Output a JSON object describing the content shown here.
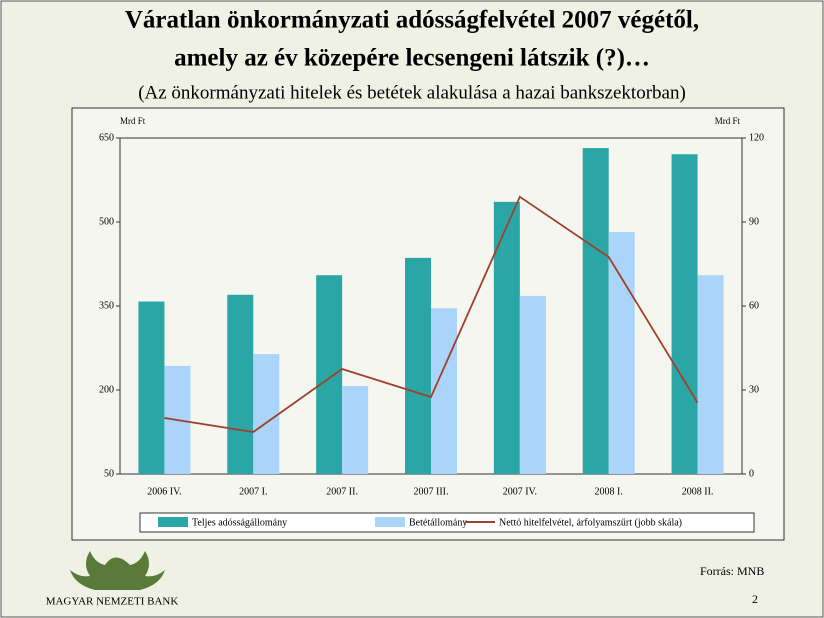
{
  "chart_data": {
    "type": "bar",
    "title": [
      "Váratlan önkormányzati adósságfelvétel 2007 végétől,",
      "amely az év közepére lecsengeni látszik (?)…"
    ],
    "subtitle": "(Az önkormányzati hitelek és betétek alakulása a hazai bankszektorban)",
    "y_label": "Mrd Ft",
    "y2_label": "Mrd Ft",
    "categories": [
      "2006 IV.",
      "2007 I.",
      "2007 II.",
      "2007 III.",
      "2007 IV.",
      "2008 I.",
      "2008 II."
    ],
    "series": [
      {
        "name": "Teljes adósságállomány",
        "color": "#2aa6a6",
        "values": [
          358,
          370,
          405,
          436,
          536,
          632,
          621
        ]
      },
      {
        "name": "Betétállomány",
        "color": "#aad4fa",
        "values": [
          243,
          264,
          207,
          346,
          368,
          482,
          405
        ]
      },
      {
        "name": "Nettó hitelfelvétel, árfolyamszűrt (jobb skála)",
        "color": "#a0402a",
        "type": "line",
        "axis": "y2",
        "values": [
          20,
          15,
          37.5,
          27.5,
          99,
          77.5,
          25.5
        ]
      }
    ],
    "ylim": [
      50,
      650
    ],
    "yticks": [
      50,
      200,
      350,
      500,
      650
    ],
    "y2lim": [
      0,
      120
    ],
    "y2ticks": [
      0,
      30,
      60,
      90,
      120
    ]
  },
  "source": "Forrás: MNB",
  "logo_text": "MAGYAR NEMZETI BANK",
  "page_number": "2"
}
